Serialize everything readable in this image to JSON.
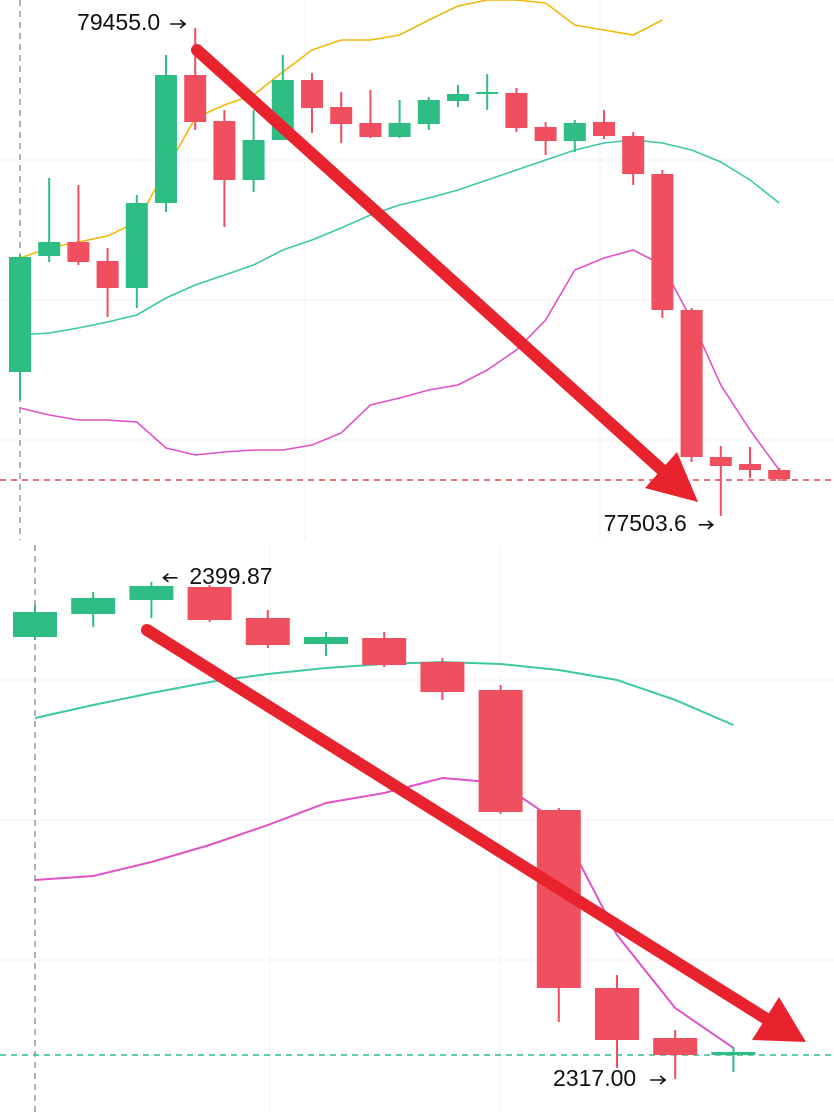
{
  "chart_data": [
    {
      "type": "candlestick",
      "ylim": [
        77447,
        79567
      ],
      "up_color": "#2ebd85",
      "down_color": "#ef4f5e",
      "candles": {
        "open": [
          78079,
          78543,
          78599,
          78523,
          78415,
          78755,
          79267,
          79083,
          78847,
          79007,
          79247,
          79139,
          79075,
          79019,
          79071,
          79163,
          79191,
          79195,
          79059,
          79003,
          79079,
          79023,
          78871,
          78327,
          77739,
          77711,
          77687
        ],
        "high": [
          78547,
          78855,
          78827,
          78575,
          78787,
          79347,
          79455,
          79127,
          79127,
          79347,
          79275,
          79199,
          79207,
          79167,
          79179,
          79227,
          79271,
          79215,
          79079,
          79087,
          79127,
          79039,
          78887,
          78335,
          77783,
          77779,
          77695
        ],
        "low": [
          77967,
          78519,
          78507,
          78299,
          78335,
          78719,
          79047,
          78659,
          78799,
          79007,
          79035,
          78995,
          79015,
          79015,
          79047,
          79139,
          79127,
          79039,
          78947,
          78959,
          79011,
          78827,
          78295,
          77719,
          77503.6,
          77655,
          77643
        ],
        "close": [
          78539,
          78599,
          78519,
          78415,
          78755,
          79267,
          79079,
          78847,
          79007,
          79247,
          79135,
          79071,
          79019,
          79075,
          79167,
          79191,
          79199,
          79055,
          79003,
          79075,
          79023,
          78871,
          78327,
          77739,
          77703,
          77687,
          77651
        ]
      },
      "series": [
        {
          "color": "#f0b90b",
          "values": [
            78535,
            78575,
            78599,
            78623,
            78679,
            78887,
            79095,
            79147,
            79187,
            79279,
            79367,
            79407,
            79407,
            79427,
            79487,
            79543,
            79567,
            79567,
            79555,
            79467,
            79447,
            79427,
            79487,
            null,
            null,
            null,
            null
          ]
        },
        {
          "color": "#3cc9a4",
          "values": [
            78227,
            78235,
            78255,
            78279,
            78307,
            78375,
            78427,
            78467,
            78507,
            78567,
            78607,
            78655,
            78707,
            78747,
            78775,
            78807,
            78847,
            78887,
            78927,
            78967,
            78995,
            79007,
            78995,
            78967,
            78919,
            78847,
            78755
          ]
        },
        {
          "color": "#e052c8",
          "values": [
            77935,
            77907,
            77887,
            77887,
            77879,
            77775,
            77747,
            77759,
            77767,
            77767,
            77787,
            77835,
            77947,
            77975,
            78007,
            78027,
            78087,
            78167,
            78287,
            78487,
            78535,
            78567,
            78507,
            78287,
            78027,
            77847,
            77687
          ]
        }
      ],
      "price_line": {
        "value": 77647,
        "color": "#e0434f"
      },
      "annotations": [
        {
          "label": "79455.0",
          "value": 79455
        },
        {
          "label": "77503.6",
          "value": 77503.6
        }
      ]
    },
    {
      "type": "candlestick",
      "ylim": [
        2312,
        2406
      ],
      "up_color": "#2ebd85",
      "down_color": "#ef4f5e",
      "candles": {
        "open": [
          2390.67,
          2394.5,
          2396.83,
          2399.0,
          2393.83,
          2389.5,
          2390.5,
          2386.5,
          2381.83,
          2361.83,
          2332.17,
          2323.83,
          2321.0
        ],
        "high": [
          2396.0,
          2398.17,
          2399.87,
          2399.33,
          2395.17,
          2391.5,
          2391.5,
          2387.17,
          2382.67,
          2362.17,
          2334.33,
          2325.17,
          2322.33
        ],
        "low": [
          2390.17,
          2392.33,
          2393.83,
          2393.17,
          2388.83,
          2387.5,
          2385.67,
          2380.17,
          2361.17,
          2326.5,
          2318.83,
          2317.0,
          2318.17
        ],
        "close": [
          2394.83,
          2397.17,
          2399.17,
          2393.5,
          2389.33,
          2390.67,
          2386.0,
          2381.5,
          2361.5,
          2332.17,
          2323.5,
          2321.0,
          2321.5
        ]
      },
      "series": [
        {
          "color": "#3cc9a4",
          "values": [
            2377.17,
            2379.33,
            2381.33,
            2383.17,
            2384.5,
            2385.5,
            2386.17,
            2386.5,
            2386.17,
            2385.17,
            2383.5,
            2380.17,
            2376.0
          ]
        },
        {
          "color": "#e052c8",
          "values": [
            2350.17,
            2350.83,
            2353.17,
            2356.0,
            2359.33,
            2363.0,
            2364.67,
            2367.17,
            2366.33,
            2359.67,
            2341.0,
            2328.83,
            2322.17
          ]
        }
      ],
      "price_line": {
        "value": 2321.0,
        "color": "#2ebd85"
      },
      "annotations": [
        {
          "label": "2399.87",
          "value": 2399.87
        },
        {
          "label": "2317.00",
          "value": 2317.0
        }
      ]
    }
  ]
}
